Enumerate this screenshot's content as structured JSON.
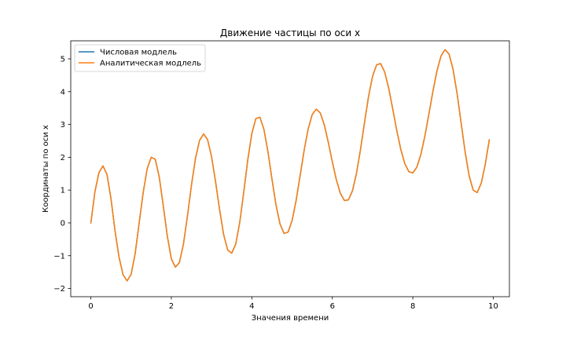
{
  "chart_data": {
    "type": "line",
    "title": "Движение частицы по оси x",
    "xlabel": "Значения времени",
    "ylabel": "Координаты по оси x",
    "xlim": [
      -0.5,
      10.4
    ],
    "ylim": [
      -2.25,
      5.55
    ],
    "xticks": [
      0,
      2,
      4,
      6,
      8,
      10
    ],
    "yticks": [
      -2,
      -1,
      0,
      1,
      2,
      3,
      4,
      5
    ],
    "xtick_labels": [
      "0",
      "2",
      "4",
      "6",
      "8",
      "10"
    ],
    "ytick_labels": [
      "−2",
      "−1",
      "0",
      "1",
      "2",
      "3",
      "4",
      "5"
    ],
    "grid": false,
    "legend_position": "upper-left",
    "x": [
      0.0,
      0.1,
      0.2,
      0.3,
      0.4,
      0.5,
      0.6,
      0.7,
      0.8,
      0.9,
      1.0,
      1.1,
      1.2,
      1.3,
      1.4,
      1.5,
      1.6,
      1.7,
      1.8,
      1.9,
      2.0,
      2.1,
      2.2,
      2.3,
      2.4,
      2.5,
      2.6,
      2.7,
      2.8,
      2.9,
      3.0,
      3.1,
      3.2,
      3.3,
      3.4,
      3.5,
      3.6,
      3.7,
      3.8,
      3.9,
      4.0,
      4.1,
      4.2,
      4.3,
      4.4,
      4.5,
      4.6,
      4.7,
      4.8,
      4.9,
      5.0,
      5.1,
      5.2,
      5.3,
      5.4,
      5.5,
      5.6,
      5.7,
      5.8,
      5.9,
      6.0,
      6.1,
      6.2,
      6.3,
      6.4,
      6.5,
      6.6,
      6.7,
      6.8,
      6.9,
      7.0,
      7.1,
      7.2,
      7.3,
      7.4,
      7.5,
      7.6,
      7.7,
      7.8,
      7.9,
      8.0,
      8.1,
      8.2,
      8.3,
      8.4,
      8.5,
      8.6,
      8.7,
      8.8,
      8.9,
      9.0,
      9.1,
      9.2,
      9.3,
      9.4,
      9.5,
      9.6,
      9.7,
      9.8,
      9.9
    ],
    "series": [
      {
        "name": "Числовая модлель",
        "color": "#1f77b4",
        "values": [
          0.0,
          0.944,
          1.532,
          1.737,
          1.477,
          0.739,
          -0.239,
          -1.044,
          -1.581,
          -1.768,
          -1.569,
          -0.941,
          -0.001,
          0.926,
          1.657,
          2.0,
          1.939,
          1.393,
          0.514,
          -0.405,
          -1.099,
          -1.35,
          -1.209,
          -0.649,
          0.21,
          1.155,
          1.969,
          2.511,
          2.712,
          2.536,
          2.012,
          1.244,
          0.394,
          -0.362,
          -0.829,
          -0.924,
          -0.646,
          0.022,
          0.947,
          1.931,
          2.728,
          3.18,
          3.22,
          2.853,
          2.17,
          1.333,
          0.548,
          -0.034,
          -0.323,
          -0.281,
          0.071,
          0.683,
          1.445,
          2.215,
          2.866,
          3.303,
          3.467,
          3.353,
          2.991,
          2.455,
          1.859,
          1.313,
          0.9,
          0.682,
          0.701,
          0.978,
          1.508,
          2.236,
          3.062,
          3.854,
          4.471,
          4.818,
          4.856,
          4.6,
          4.11,
          3.48,
          2.825,
          2.246,
          1.811,
          1.561,
          1.521,
          1.7,
          2.087,
          2.649,
          3.319,
          4.012,
          4.633,
          5.086,
          5.28,
          5.147,
          4.681,
          3.944,
          3.051,
          2.16,
          1.432,
          0.998,
          0.924,
          1.208,
          1.781,
          2.533
        ]
      },
      {
        "name": "Аналитическая модлель",
        "color": "#ff7f0e",
        "values": [
          0.0,
          0.944,
          1.532,
          1.737,
          1.477,
          0.739,
          -0.239,
          -1.044,
          -1.581,
          -1.768,
          -1.569,
          -0.941,
          -0.001,
          0.926,
          1.657,
          2.0,
          1.939,
          1.393,
          0.514,
          -0.405,
          -1.099,
          -1.35,
          -1.209,
          -0.649,
          0.21,
          1.155,
          1.969,
          2.511,
          2.712,
          2.536,
          2.012,
          1.244,
          0.394,
          -0.362,
          -0.829,
          -0.924,
          -0.646,
          0.022,
          0.947,
          1.931,
          2.728,
          3.18,
          3.22,
          2.853,
          2.17,
          1.333,
          0.548,
          -0.034,
          -0.323,
          -0.281,
          0.071,
          0.683,
          1.445,
          2.215,
          2.866,
          3.303,
          3.467,
          3.353,
          2.991,
          2.455,
          1.859,
          1.313,
          0.9,
          0.682,
          0.701,
          0.978,
          1.508,
          2.236,
          3.062,
          3.854,
          4.471,
          4.818,
          4.856,
          4.6,
          4.11,
          3.48,
          2.825,
          2.246,
          1.811,
          1.561,
          1.521,
          1.7,
          2.087,
          2.649,
          3.319,
          4.012,
          4.633,
          5.086,
          5.28,
          5.147,
          4.681,
          3.944,
          3.051,
          2.16,
          1.432,
          0.998,
          0.924,
          1.208,
          1.781,
          2.533
        ]
      }
    ]
  }
}
